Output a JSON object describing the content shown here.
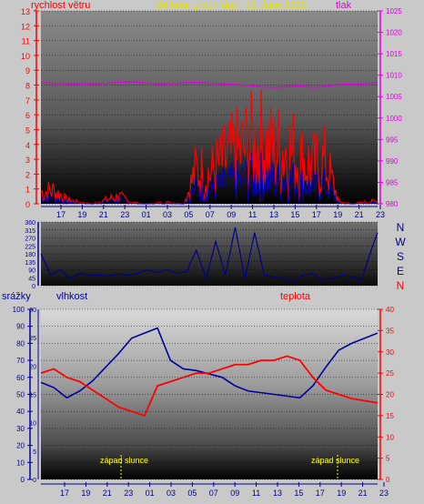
{
  "chart_data": [
    {
      "type": "line",
      "labels": {
        "left": "rychlost větru",
        "title": "24 hour graph day : 12 June 2020",
        "right": "tlak"
      },
      "x_ticks": [
        "17",
        "19",
        "21",
        "23",
        "01",
        "03",
        "05",
        "07",
        "09",
        "11",
        "13",
        "15",
        "17",
        "19",
        "21",
        "23"
      ],
      "ylim_left": [
        0,
        13
      ],
      "ylim_right": [
        980,
        1025
      ],
      "y_ticks_left": [
        "0",
        "1",
        "2",
        "3",
        "4",
        "5",
        "6",
        "7",
        "8",
        "9",
        "10",
        "11",
        "12",
        "13"
      ],
      "y_ticks_right": [
        "980",
        "985",
        "990",
        "995",
        "1000",
        "1005",
        "1010",
        "1015",
        "1020",
        "1025"
      ],
      "colors": {
        "wind": "#ff0000",
        "gust_blue": "#0000c0",
        "pressure": "#e000e0",
        "left_axis": "#ff0000",
        "right_axis": "#e000e0"
      },
      "pressure": [
        1008.2,
        1008.1,
        1008.0,
        1008.0,
        1008.0,
        1008.1,
        1008.3,
        1008.5,
        1008.2,
        1008.0,
        1008.0,
        1008.2,
        1008.3,
        1008.1,
        1008.0,
        1007.8,
        1007.6,
        1007.3,
        1007.2,
        1007.3,
        1007.5,
        1007.2,
        1007.4,
        1007.8,
        1007.9,
        1008.0,
        1008.2
      ],
      "pressure_x": [
        0,
        4,
        8,
        12,
        16,
        20,
        24,
        28,
        32,
        36,
        40,
        44,
        48,
        52,
        56,
        60,
        64,
        68,
        72,
        76,
        80,
        84,
        88,
        92,
        96,
        100,
        104
      ],
      "wind_envelope_x": [
        0,
        4,
        8,
        12,
        16,
        20,
        24,
        28,
        32,
        36,
        40,
        44,
        48,
        52,
        56,
        60,
        64,
        68,
        72,
        76,
        80,
        84,
        88,
        92,
        96,
        100,
        104
      ],
      "wind_envelope": [
        1.5,
        1.8,
        0.5,
        0.2,
        0,
        0.5,
        1.0,
        0.2,
        0,
        0.1,
        0.2,
        0,
        4.5,
        4.0,
        5.5,
        6.5,
        7.5,
        8.0,
        7.0,
        7.5,
        6.0,
        5.0,
        5.5,
        0.3,
        0,
        0.2,
        0.4
      ]
    },
    {
      "type": "line",
      "ylim": [
        0,
        360
      ],
      "y_ticks": [
        "0",
        "45",
        "90",
        "135",
        "180",
        "225",
        "270",
        "315",
        "360"
      ],
      "compass": [
        "N",
        "W",
        "S",
        "E",
        "N"
      ],
      "colors": {
        "direction": "#00008b",
        "compass": "#00008b",
        "compass_n_bottom": "#ff0000",
        "axis": "#00008b"
      },
      "direction_x": [
        0,
        3,
        6,
        9,
        12,
        15,
        18,
        21,
        24,
        27,
        30,
        33,
        36,
        39,
        42,
        45,
        48,
        51,
        54,
        57,
        60,
        63,
        66,
        69,
        72,
        75,
        78,
        81,
        84,
        87,
        90,
        93,
        96,
        99,
        102,
        104
      ],
      "direction": [
        180,
        60,
        90,
        40,
        70,
        60,
        60,
        55,
        65,
        60,
        70,
        90,
        75,
        90,
        70,
        80,
        200,
        40,
        250,
        60,
        330,
        40,
        300,
        60,
        50,
        40,
        20,
        60,
        70,
        30,
        40,
        60,
        50,
        30,
        200,
        300
      ]
    },
    {
      "type": "line",
      "labels": {
        "left_outer": "srážky",
        "left_inner": "vlhkost",
        "right": "teplota",
        "sunset": "západ slunce"
      },
      "y_ticks_outer": [
        "0",
        "10",
        "20",
        "30",
        "40",
        "50",
        "60",
        "70",
        "80",
        "90",
        "100"
      ],
      "y_ticks_inner": [
        "0",
        "5",
        "10",
        "15",
        "20",
        "25",
        "30"
      ],
      "y_ticks_right": [
        "0",
        "5",
        "10",
        "15",
        "20",
        "25",
        "30",
        "35",
        "40"
      ],
      "ylim_humidity": [
        0,
        100
      ],
      "ylim_temperature": [
        0,
        40
      ],
      "colors": {
        "humidity": "#0000a0",
        "temperature": "#ff0000",
        "sunset": "#ffff00",
        "outer_axis": "#0000a0",
        "inner_axis": "#0000a0",
        "right_axis": "#ff0000"
      },
      "x": [
        0,
        4,
        8,
        12,
        16,
        20,
        24,
        28,
        32,
        36,
        40,
        44,
        48,
        52,
        56,
        60,
        64,
        68,
        72,
        76,
        80,
        84,
        88,
        92,
        96,
        100,
        104
      ],
      "humidity": [
        57,
        54,
        48,
        52,
        58,
        66,
        74,
        83,
        86,
        89,
        70,
        65,
        64,
        62,
        60,
        55,
        52,
        51,
        50,
        49,
        48,
        55,
        66,
        76,
        80,
        83,
        86
      ],
      "temperature": [
        25,
        26,
        24,
        23,
        21,
        19,
        17,
        16,
        15,
        22,
        23,
        24,
        25,
        25,
        26,
        27,
        27,
        28,
        28,
        29,
        28,
        24,
        21,
        20,
        19,
        18.5,
        18
      ]
    }
  ]
}
